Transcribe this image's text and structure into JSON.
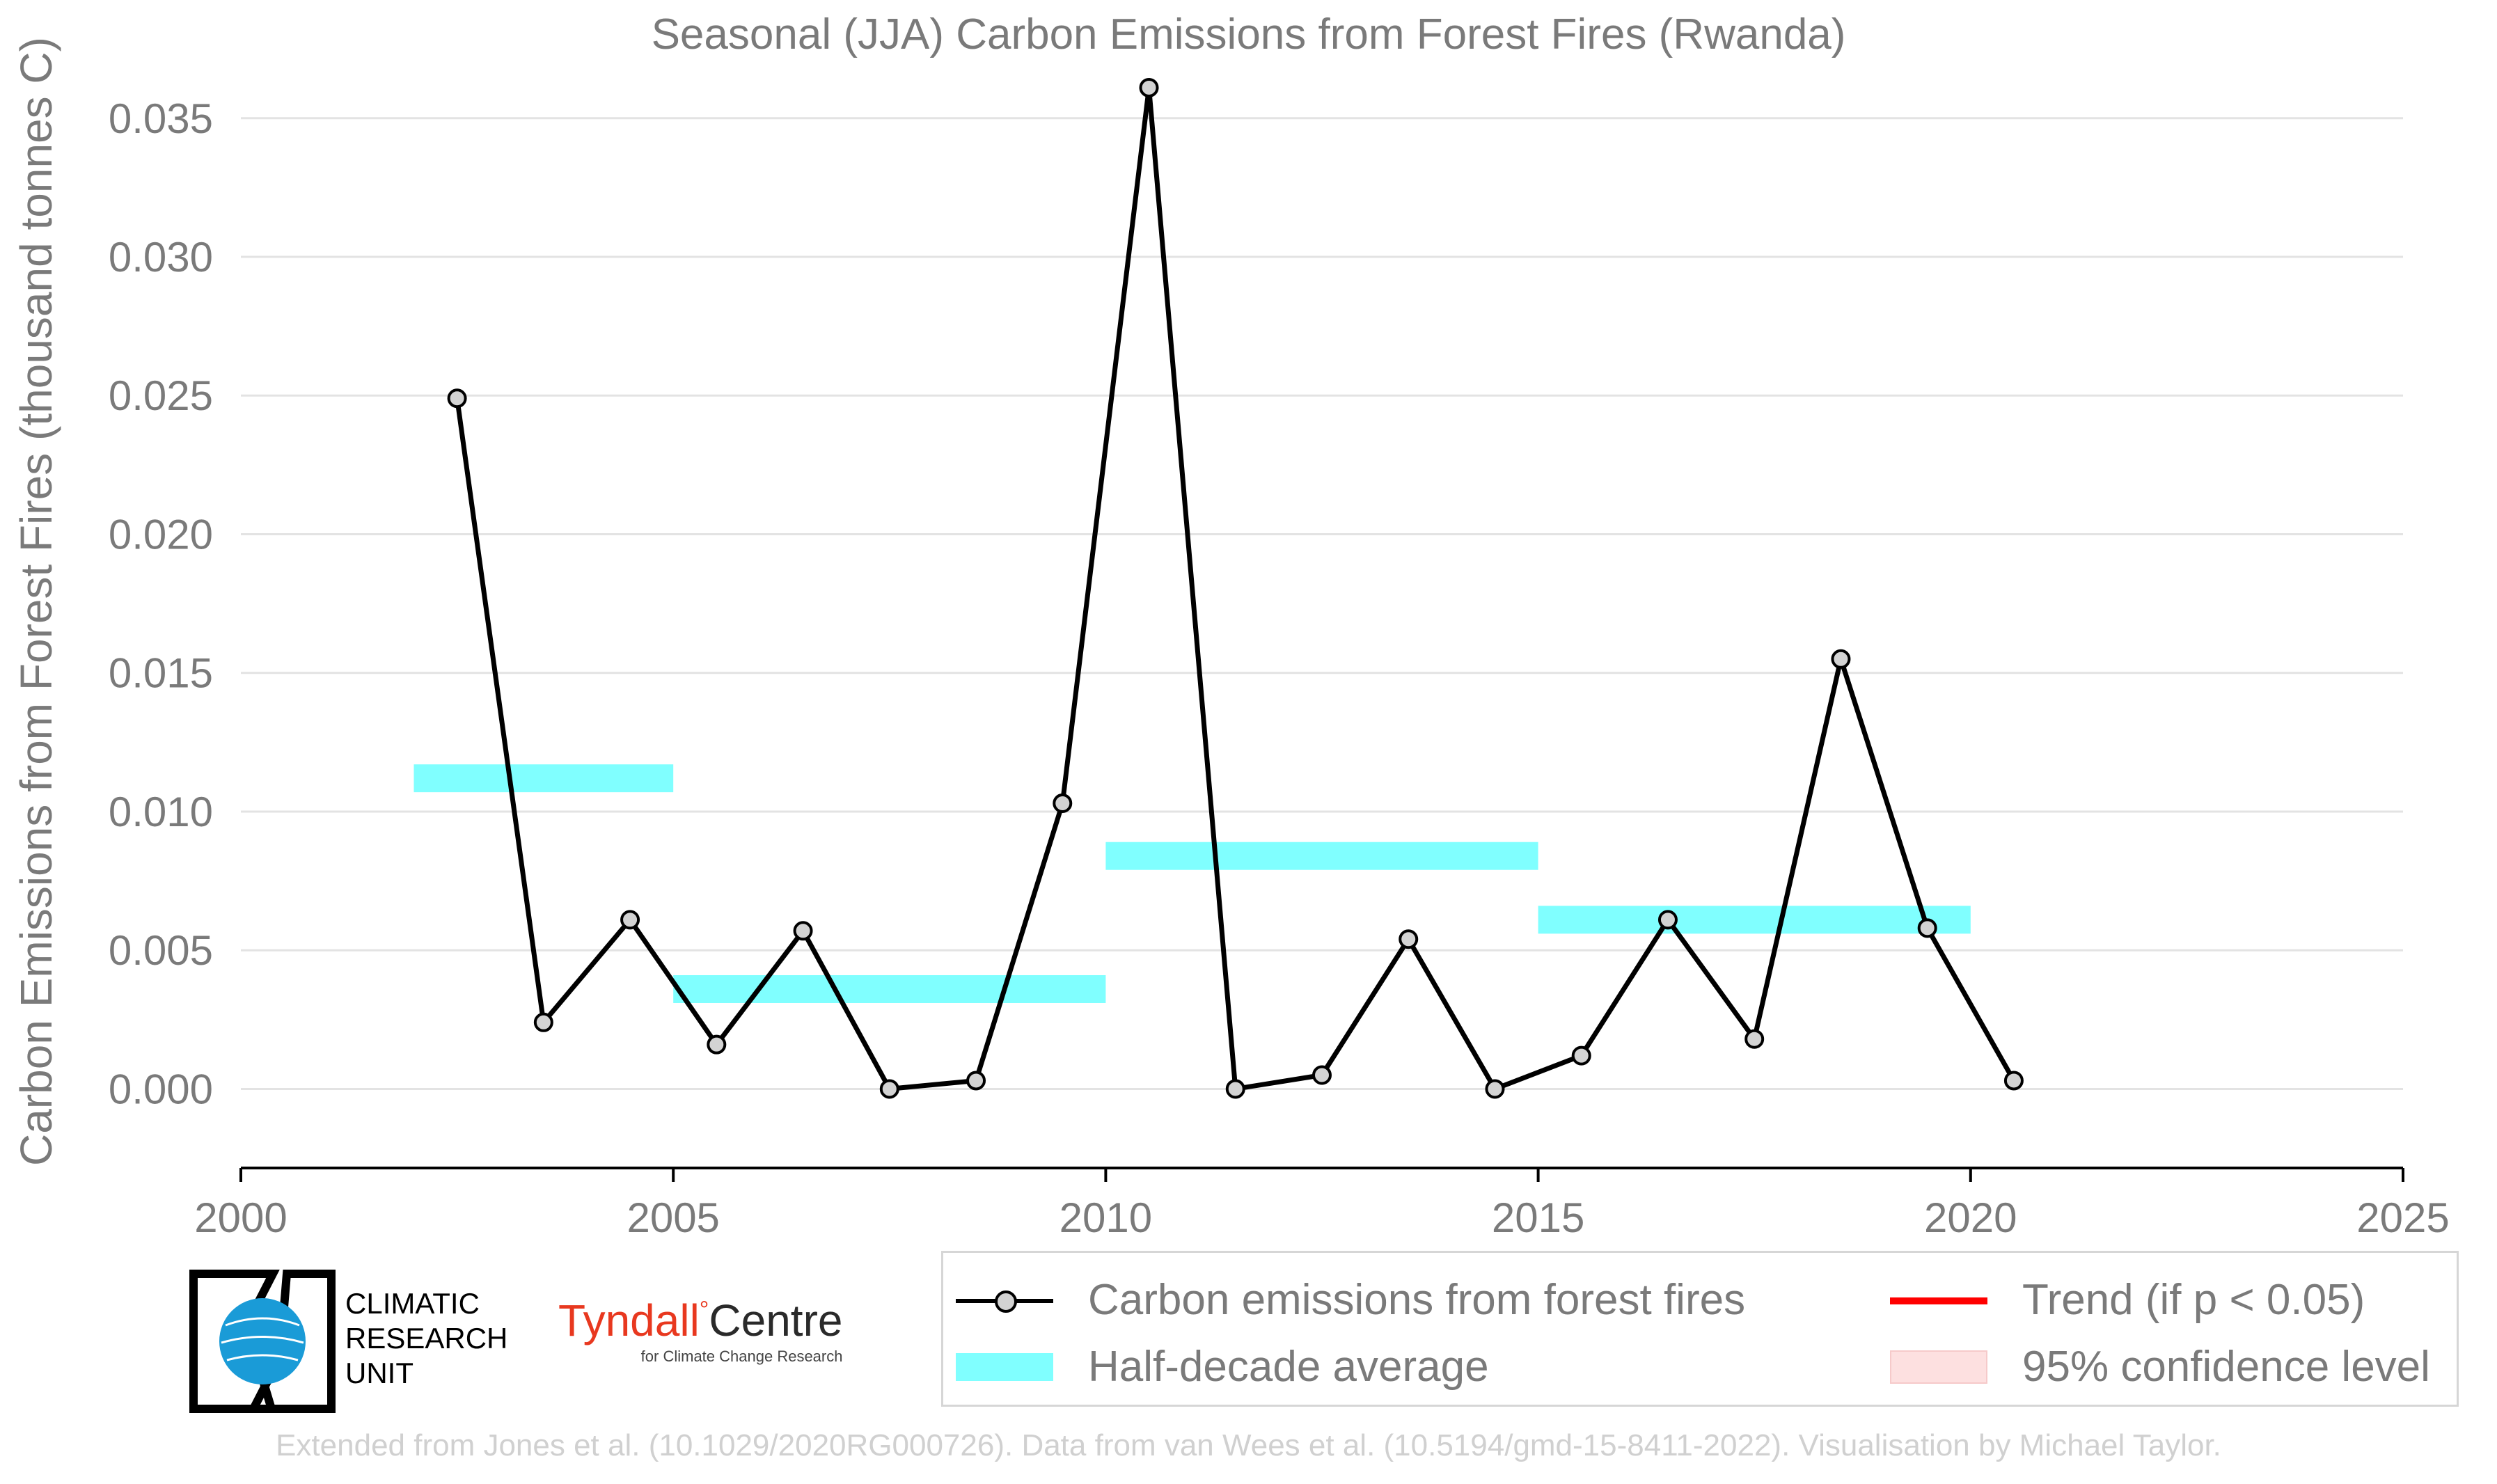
{
  "chart_data": {
    "type": "line",
    "title": "Seasonal (JJA) Carbon Emissions from Forest Fires (Rwanda)",
    "ylabel": "Carbon Emissions from Forest Fires (thousand tonnes C)",
    "xlabel": "",
    "xlim": [
      2000,
      2025
    ],
    "ylim": [
      -0.0029,
      0.0365
    ],
    "xticks": [
      2000,
      2005,
      2010,
      2015,
      2020,
      2025
    ],
    "yticks": [
      "0.000",
      "0.005",
      "0.010",
      "0.015",
      "0.020",
      "0.025",
      "0.030",
      "0.035"
    ],
    "grid": "horizontal",
    "legend_position": "bottom-right",
    "series": [
      {
        "name": "Carbon emissions from forest fires",
        "type": "line-markers",
        "color": "#000000",
        "marker_color": "#d3d3d3",
        "x": [
          2002.5,
          2003.5,
          2004.5,
          2005.5,
          2006.5,
          2007.5,
          2008.5,
          2009.5,
          2010.5,
          2011.5,
          2012.5,
          2013.5,
          2014.5,
          2015.5,
          2016.5,
          2017.5,
          2018.5,
          2019.5,
          2020.5
        ],
        "y": [
          0.0249,
          0.0024,
          0.0061,
          0.0016,
          0.0057,
          0.0,
          0.0003,
          0.0103,
          0.0361,
          0.0,
          0.0005,
          0.0054,
          0.0,
          0.0012,
          0.0061,
          0.0018,
          0.0155,
          0.0058,
          0.0003
        ]
      },
      {
        "name": "Half-decade average",
        "type": "bars",
        "color": "#80ffff",
        "segments": [
          {
            "x0": 2002.0,
            "x1": 2005.0,
            "y": 0.0112
          },
          {
            "x0": 2005.0,
            "x1": 2010.0,
            "y": 0.0036
          },
          {
            "x0": 2010.0,
            "x1": 2015.0,
            "y": 0.0084
          },
          {
            "x0": 2015.0,
            "x1": 2020.0,
            "y": 0.0061
          }
        ]
      }
    ]
  },
  "legend": {
    "items": [
      {
        "label": "Carbon emissions from forest fires",
        "color": "#000000"
      },
      {
        "label": "Trend (if p < 0.05)",
        "color": "#ff0000"
      },
      {
        "label": "Half-decade average",
        "color": "#80ffff"
      },
      {
        "label": "95% confidence level",
        "color": "#fde0e0"
      }
    ]
  },
  "logos": {
    "cru": {
      "line1": "CLIMATIC",
      "line2": "RESEARCH",
      "line3": "UNIT"
    },
    "tyndall": {
      "main": "Tyndall",
      "degree": "°",
      "centre": "Centre",
      "sub": "for Climate Change Research"
    }
  },
  "credit": "Extended from Jones et al. (10.1029/2020RG000726). Data from van Wees et al. (10.5194/gmd-15-8411-2022). Visualisation by Michael Taylor."
}
